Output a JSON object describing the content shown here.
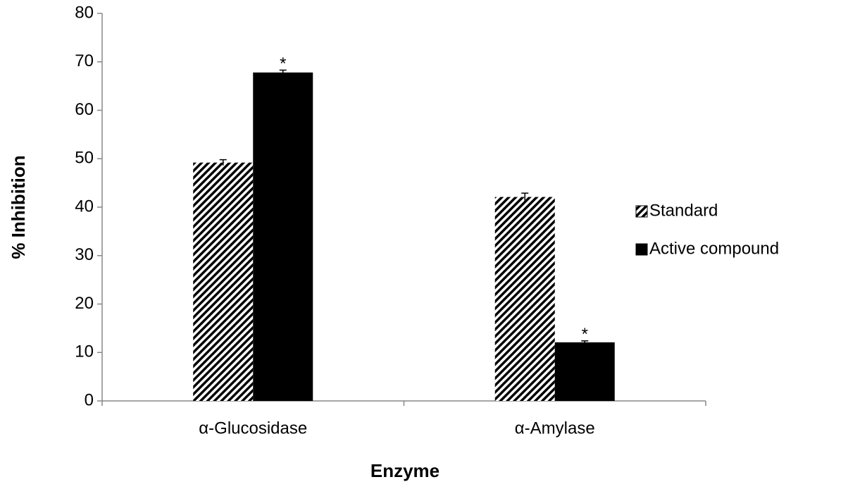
{
  "chart_data": {
    "type": "bar",
    "x_label": "Enzyme",
    "y_label": "% Inhibition",
    "categories": [
      "α-Glucosidase",
      "α-Amylase"
    ],
    "series": [
      {
        "name": "Standard",
        "color": "#000000",
        "pattern": "hatch",
        "values": [
          49.2,
          42.1
        ],
        "errors": [
          0.6,
          0.8
        ]
      },
      {
        "name": "Active compound",
        "color": "#000000",
        "pattern": "solid",
        "values": [
          67.8,
          12.1
        ],
        "errors": [
          0.5,
          0.3
        ],
        "significance": [
          "*",
          "*"
        ]
      }
    ],
    "ylim": [
      0,
      80
    ],
    "yticks": [
      0,
      10,
      20,
      30,
      40,
      50,
      60,
      70,
      80
    ],
    "grid": false,
    "legend": "right"
  }
}
